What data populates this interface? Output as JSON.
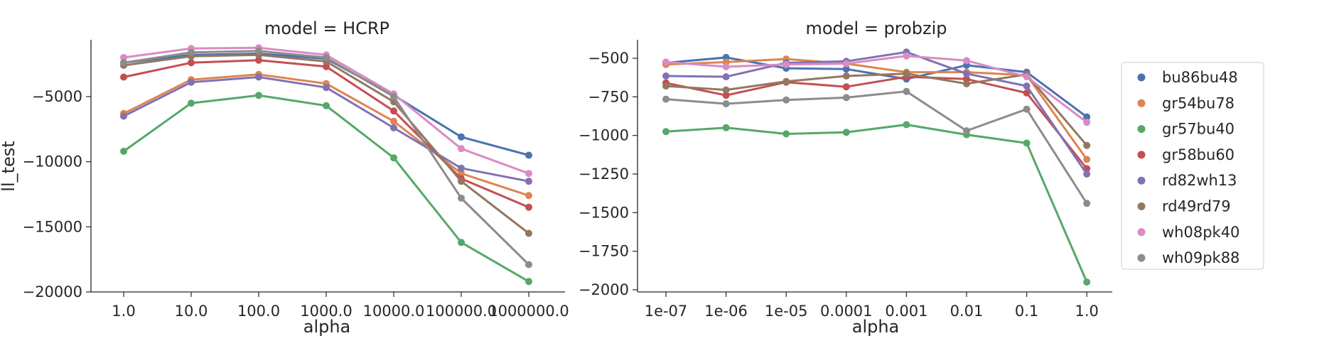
{
  "chart_data": [
    {
      "type": "line",
      "title": "model = HCRP",
      "xlabel": "alpha",
      "ylabel": "ll_test",
      "x": [
        "1.0",
        "10.0",
        "100.0",
        "1000.0",
        "10000.0",
        "100000.0",
        "1000000.0"
      ],
      "yticks": [
        "−5000",
        "−10000",
        "−15000",
        "−20000"
      ],
      "ytick_values": [
        -5000,
        -10000,
        -15000,
        -20000
      ],
      "ylim": [
        -20000,
        -1500
      ],
      "grid": false,
      "series": [
        {
          "name": "bu86bu48",
          "color": "#4c72b0",
          "values": [
            -2400,
            -1800,
            -1700,
            -2100,
            -4900,
            -8100,
            -9500
          ]
        },
        {
          "name": "gr54bu78",
          "color": "#dd8452",
          "values": [
            -6300,
            -3700,
            -3300,
            -4000,
            -6900,
            -10900,
            -12600
          ]
        },
        {
          "name": "gr57bu40",
          "color": "#55a868",
          "values": [
            -9200,
            -5500,
            -4900,
            -5700,
            -9700,
            -16200,
            -19200
          ]
        },
        {
          "name": "gr58bu60",
          "color": "#c44e52",
          "values": [
            -3500,
            -2400,
            -2200,
            -2700,
            -6100,
            -11300,
            -13500
          ]
        },
        {
          "name": "rd82wh13",
          "color": "#8172b3",
          "values": [
            -6500,
            -3900,
            -3500,
            -4300,
            -7400,
            -10500,
            -11500
          ]
        },
        {
          "name": "rd49rd79",
          "color": "#937860",
          "values": [
            -2600,
            -1900,
            -1800,
            -2300,
            -5400,
            -11500,
            -15500
          ]
        },
        {
          "name": "wh08pk40",
          "color": "#da8bc3",
          "values": [
            -2000,
            -1300,
            -1250,
            -1800,
            -4800,
            -9000,
            -10900
          ]
        },
        {
          "name": "wh09pk88",
          "color": "#8c8c8c",
          "values": [
            -2400,
            -1600,
            -1500,
            -2000,
            -5000,
            -12800,
            -17900
          ]
        }
      ]
    },
    {
      "type": "line",
      "title": "model = probzip",
      "xlabel": "alpha",
      "ylabel": "",
      "x": [
        "1e-07",
        "1e-06",
        "1e-05",
        "0.0001",
        "0.001",
        "0.01",
        "0.1",
        "1.0"
      ],
      "yticks": [
        "−500",
        "−750",
        "−1000",
        "−1250",
        "−1500",
        "−1750",
        "−2000"
      ],
      "ytick_values": [
        -500,
        -750,
        -1000,
        -1250,
        -1500,
        -1750,
        -2000
      ],
      "ylim": [
        -2000,
        -400
      ],
      "grid": false,
      "series": [
        {
          "name": "bu86bu48",
          "color": "#4c72b0",
          "values": [
            -530,
            -495,
            -565,
            -570,
            -635,
            -545,
            -590,
            -880
          ]
        },
        {
          "name": "gr54bu78",
          "color": "#dd8452",
          "values": [
            -540,
            -525,
            -505,
            -535,
            -590,
            -590,
            -610,
            -1155
          ]
        },
        {
          "name": "gr57bu40",
          "color": "#55a868",
          "values": [
            -975,
            -950,
            -990,
            -980,
            -930,
            -995,
            -1050,
            -1950
          ]
        },
        {
          "name": "gr58bu60",
          "color": "#c44e52",
          "values": [
            -660,
            -740,
            -655,
            -685,
            -620,
            -635,
            -725,
            -1215
          ]
        },
        {
          "name": "rd82wh13",
          "color": "#8172b3",
          "values": [
            -615,
            -620,
            -530,
            -520,
            -460,
            -600,
            -680,
            -1250
          ]
        },
        {
          "name": "rd49rd79",
          "color": "#937860",
          "values": [
            -680,
            -705,
            -650,
            -615,
            -600,
            -665,
            -605,
            -1065
          ]
        },
        {
          "name": "wh08pk40",
          "color": "#da8bc3",
          "values": [
            -525,
            -555,
            -540,
            -535,
            -485,
            -515,
            -620,
            -915
          ]
        },
        {
          "name": "wh09pk88",
          "color": "#8c8c8c",
          "values": [
            -765,
            -795,
            -770,
            -755,
            -715,
            -970,
            -830,
            -1440
          ]
        }
      ]
    }
  ],
  "legend": {
    "placement": "right",
    "entries": [
      "bu86bu48",
      "gr54bu78",
      "gr57bu40",
      "gr58bu60",
      "rd82wh13",
      "rd49rd79",
      "wh08pk40",
      "wh09pk88"
    ],
    "colors": [
      "#4c72b0",
      "#dd8452",
      "#55a868",
      "#c44e52",
      "#8172b3",
      "#937860",
      "#da8bc3",
      "#8c8c8c"
    ]
  }
}
